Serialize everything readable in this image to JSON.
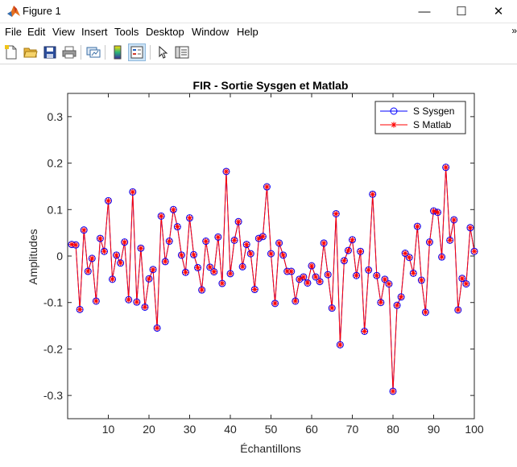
{
  "window": {
    "title": "Figure 1",
    "controls": {
      "minimize": "—",
      "maximize": "☐",
      "close": "✕"
    }
  },
  "menu": {
    "items": [
      "File",
      "Edit",
      "View",
      "Insert",
      "Tools",
      "Desktop",
      "Window",
      "Help"
    ],
    "more": "»"
  },
  "toolbar": {
    "buttons": [
      "new-figure-icon",
      "open-file-icon",
      "save-icon",
      "print-icon",
      "link-plot-icon",
      "colorbar-icon",
      "legend-icon",
      "pointer-icon",
      "property-inspector-icon"
    ]
  },
  "chart_data": {
    "type": "line",
    "title": "FIR - Sortie Sysgen et Matlab",
    "xlabel": "Échantillons",
    "ylabel": "Amplitudes",
    "xlim": [
      0,
      100
    ],
    "ylim": [
      -0.35,
      0.35
    ],
    "xticks": [
      10,
      20,
      30,
      40,
      50,
      60,
      70,
      80,
      90,
      100
    ],
    "yticks": [
      -0.3,
      -0.2,
      -0.1,
      0,
      0.1,
      0.2,
      0.3
    ],
    "ytick_labels": [
      "-0.3",
      "-0.2",
      "-0.1",
      "0",
      "0.1",
      "0.2",
      "0.3"
    ],
    "grid": false,
    "legend_position": "top-right",
    "x": [
      1,
      2,
      3,
      4,
      5,
      6,
      7,
      8,
      9,
      10,
      11,
      12,
      13,
      14,
      15,
      16,
      17,
      18,
      19,
      20,
      21,
      22,
      23,
      24,
      25,
      26,
      27,
      28,
      29,
      30,
      31,
      32,
      33,
      34,
      35,
      36,
      37,
      38,
      39,
      40,
      41,
      42,
      43,
      44,
      45,
      46,
      47,
      48,
      49,
      50,
      51,
      52,
      53,
      54,
      55,
      56,
      57,
      58,
      59,
      60,
      61,
      62,
      63,
      64,
      65,
      66,
      67,
      68,
      69,
      70,
      71,
      72,
      73,
      74,
      75,
      76,
      77,
      78,
      79,
      80,
      81,
      82,
      83,
      84,
      85,
      86,
      87,
      88,
      89,
      90,
      91,
      92,
      93,
      94,
      95,
      96,
      97,
      98,
      99,
      100
    ],
    "series": [
      {
        "name": "S Sysgen",
        "color": "#0000ff",
        "marker": "circle",
        "values": [
          0.025,
          0.024,
          -0.115,
          0.056,
          -0.033,
          -0.005,
          -0.097,
          0.038,
          0.01,
          0.119,
          -0.05,
          0.002,
          -0.015,
          0.03,
          -0.094,
          0.138,
          -0.099,
          0.017,
          -0.11,
          -0.049,
          -0.029,
          -0.155,
          0.086,
          -0.012,
          0.032,
          0.1,
          0.063,
          0.002,
          -0.035,
          0.082,
          0.003,
          -0.025,
          -0.073,
          0.032,
          -0.024,
          -0.034,
          0.041,
          -0.059,
          0.182,
          -0.038,
          0.034,
          0.074,
          -0.023,
          0.025,
          0.005,
          -0.072,
          0.038,
          0.042,
          0.149,
          0.005,
          -0.102,
          0.028,
          0.002,
          -0.033,
          -0.033,
          -0.097,
          -0.05,
          -0.045,
          -0.058,
          -0.021,
          -0.045,
          -0.055,
          0.028,
          -0.04,
          -0.112,
          0.091,
          -0.191,
          -0.01,
          0.012,
          0.035,
          -0.042,
          0.01,
          -0.162,
          -0.03,
          0.133,
          -0.042,
          -0.1,
          -0.05,
          -0.06,
          -0.291,
          -0.106,
          -0.088,
          0.006,
          -0.003,
          -0.037,
          0.064,
          -0.052,
          -0.121,
          0.03,
          0.097,
          0.094,
          -0.002,
          0.191,
          0.034,
          0.078,
          -0.116,
          -0.048,
          -0.06,
          0.061,
          0.01
        ]
      },
      {
        "name": "S Matlab",
        "color": "#ff0000",
        "marker": "star",
        "values": [
          0.025,
          0.024,
          -0.115,
          0.056,
          -0.033,
          -0.005,
          -0.097,
          0.038,
          0.01,
          0.119,
          -0.05,
          0.002,
          -0.015,
          0.03,
          -0.094,
          0.138,
          -0.099,
          0.017,
          -0.11,
          -0.049,
          -0.029,
          -0.155,
          0.086,
          -0.012,
          0.032,
          0.1,
          0.063,
          0.002,
          -0.035,
          0.082,
          0.003,
          -0.025,
          -0.073,
          0.032,
          -0.024,
          -0.034,
          0.041,
          -0.059,
          0.182,
          -0.038,
          0.034,
          0.074,
          -0.023,
          0.025,
          0.005,
          -0.072,
          0.038,
          0.042,
          0.149,
          0.005,
          -0.102,
          0.028,
          0.002,
          -0.033,
          -0.033,
          -0.097,
          -0.05,
          -0.045,
          -0.058,
          -0.021,
          -0.045,
          -0.055,
          0.028,
          -0.04,
          -0.112,
          0.091,
          -0.191,
          -0.01,
          0.012,
          0.035,
          -0.042,
          0.01,
          -0.162,
          -0.03,
          0.133,
          -0.042,
          -0.1,
          -0.05,
          -0.06,
          -0.291,
          -0.106,
          -0.088,
          0.006,
          -0.003,
          -0.037,
          0.064,
          -0.052,
          -0.121,
          0.03,
          0.097,
          0.094,
          -0.002,
          0.191,
          0.034,
          0.078,
          -0.116,
          -0.048,
          -0.06,
          0.061,
          0.01
        ]
      }
    ]
  }
}
